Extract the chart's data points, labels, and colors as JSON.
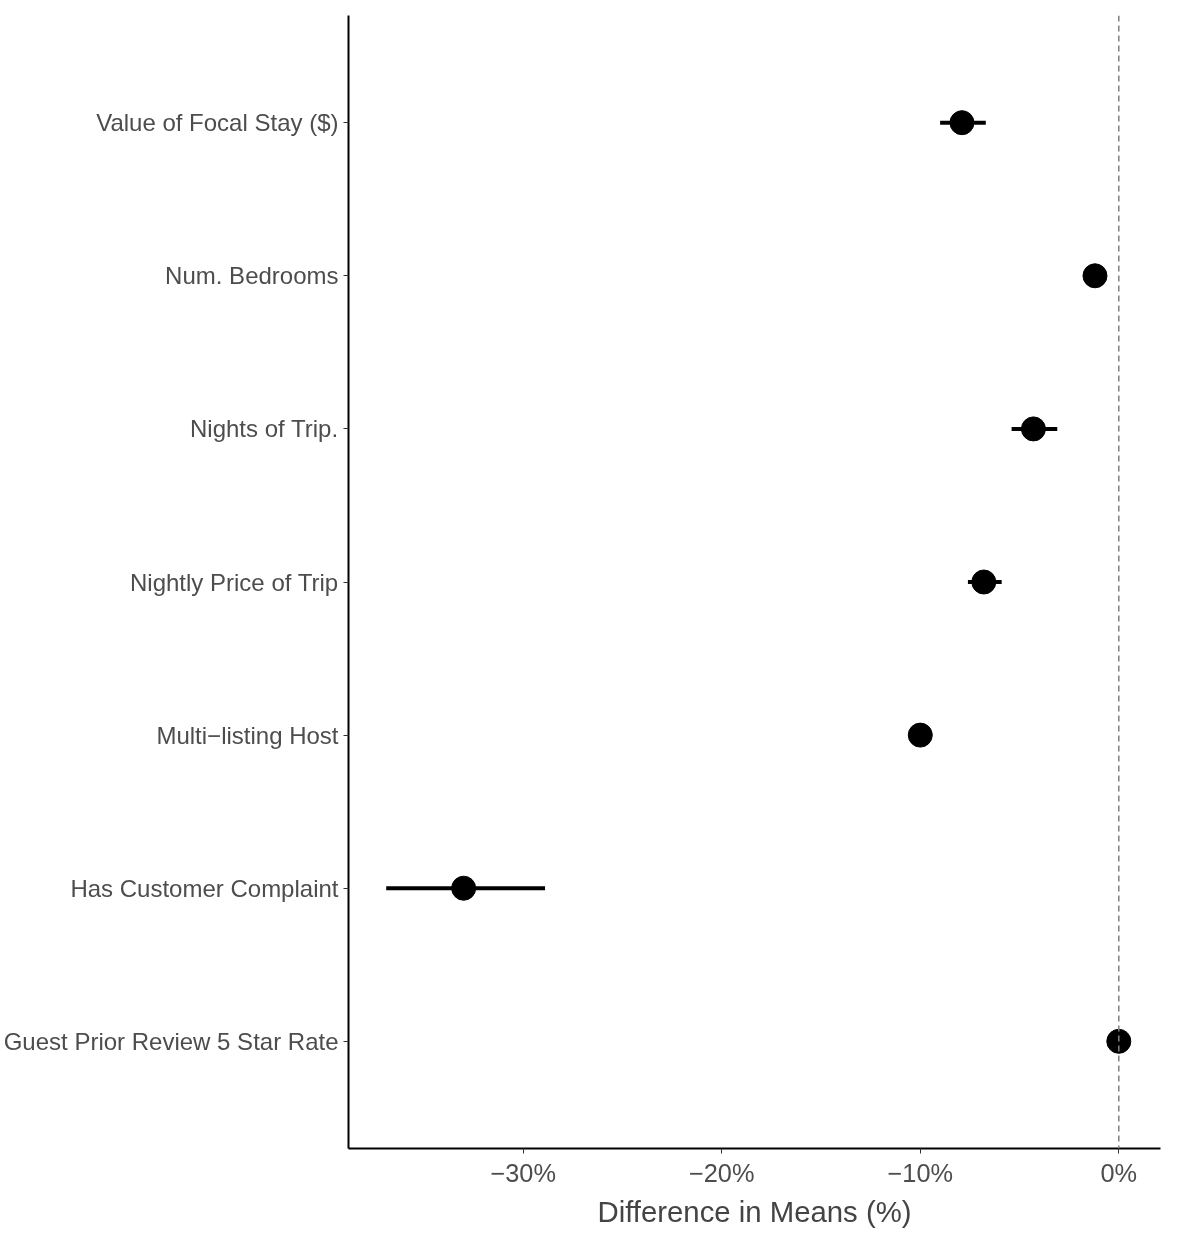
{
  "chart_data": {
    "type": "scatter",
    "orientation": "horizontal",
    "xlabel": "Difference in Means (%)",
    "categories": [
      "Value of Focal Stay ($)",
      "Num. Bedrooms",
      "Nights of Trip.",
      "Nightly Price of Trip",
      "Multi−listing Host",
      "Has Customer Complaint",
      "Guest Prior Review 5 Star Rate"
    ],
    "values": [
      -7.9,
      -1.2,
      -4.3,
      -6.8,
      -10.0,
      -33.0,
      0.0
    ],
    "errors": [
      [
        -9.0,
        -6.7
      ],
      null,
      [
        -5.4,
        -3.1
      ],
      [
        -7.6,
        -5.9
      ],
      null,
      [
        -36.9,
        -28.9
      ],
      null
    ],
    "color": "#000000",
    "marker": "circle",
    "xlim": [
      -38.8,
      2.1
    ],
    "xticks": [
      {
        "value": -30,
        "label": "−30%"
      },
      {
        "value": -20,
        "label": "−20%"
      },
      {
        "value": -10,
        "label": "−10%"
      },
      {
        "value": 0,
        "label": "0%"
      }
    ],
    "ref_lines": [
      {
        "axis": "x",
        "value": 0,
        "color": "#808080",
        "line_style": "dashed"
      }
    ],
    "grid": false
  }
}
